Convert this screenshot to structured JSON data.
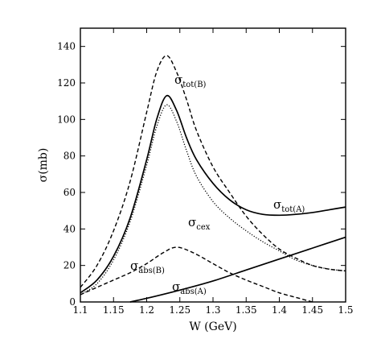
{
  "chart_data": {
    "type": "line",
    "xlabel": "W (GeV)",
    "ylabel": "σ(mb)",
    "xlim": [
      1.1,
      1.5
    ],
    "ylim": [
      0,
      150
    ],
    "x_ticks": [
      "1.1",
      "1.15",
      "1.2",
      "1.25",
      "1.3",
      "1.35",
      "1.4",
      "1.45",
      "1.5"
    ],
    "y_ticks": [
      "0",
      "20",
      "40",
      "60",
      "80",
      "100",
      "120",
      "140"
    ],
    "grid": false,
    "legend": "none",
    "series": [
      {
        "name": "σtot(A)",
        "label_main": "σ",
        "label_sub": "tot(A)",
        "style": "solid",
        "points": [
          [
            1.1,
            5
          ],
          [
            1.125,
            12
          ],
          [
            1.15,
            25
          ],
          [
            1.175,
            46
          ],
          [
            1.2,
            78
          ],
          [
            1.215,
            100
          ],
          [
            1.23,
            113
          ],
          [
            1.245,
            105
          ],
          [
            1.26,
            90
          ],
          [
            1.275,
            78
          ],
          [
            1.3,
            65
          ],
          [
            1.325,
            56
          ],
          [
            1.35,
            50.5
          ],
          [
            1.375,
            48
          ],
          [
            1.4,
            47.5
          ],
          [
            1.425,
            48
          ],
          [
            1.45,
            49
          ],
          [
            1.475,
            50.5
          ],
          [
            1.5,
            52
          ]
        ]
      },
      {
        "name": "σtot(B)",
        "label_main": "σ",
        "label_sub": "tot(B)",
        "style": "dashed",
        "points": [
          [
            1.1,
            8
          ],
          [
            1.125,
            20
          ],
          [
            1.15,
            39
          ],
          [
            1.175,
            66
          ],
          [
            1.2,
            104
          ],
          [
            1.215,
            126
          ],
          [
            1.23,
            135
          ],
          [
            1.245,
            126
          ],
          [
            1.26,
            111
          ],
          [
            1.275,
            94
          ],
          [
            1.3,
            74
          ],
          [
            1.325,
            60
          ],
          [
            1.35,
            47
          ],
          [
            1.375,
            37
          ],
          [
            1.4,
            29
          ],
          [
            1.425,
            24
          ],
          [
            1.45,
            20
          ],
          [
            1.475,
            18
          ],
          [
            1.5,
            17
          ]
        ]
      },
      {
        "name": "σcex",
        "label_main": "σ",
        "label_sub": "cex",
        "style": "dotted",
        "points": [
          [
            1.1,
            4
          ],
          [
            1.125,
            10
          ],
          [
            1.15,
            23
          ],
          [
            1.175,
            44
          ],
          [
            1.2,
            75
          ],
          [
            1.215,
            96
          ],
          [
            1.23,
            108
          ],
          [
            1.245,
            99
          ],
          [
            1.26,
            83
          ],
          [
            1.275,
            69
          ],
          [
            1.3,
            55
          ],
          [
            1.325,
            46
          ],
          [
            1.35,
            39
          ],
          [
            1.375,
            33
          ],
          [
            1.4,
            28
          ],
          [
            1.425,
            23
          ],
          [
            1.45,
            20
          ],
          [
            1.475,
            18
          ],
          [
            1.5,
            17
          ]
        ]
      },
      {
        "name": "σabs(B)",
        "label_main": "σ",
        "label_sub": "abs(B)",
        "style": "dashed",
        "points": [
          [
            1.1,
            4
          ],
          [
            1.125,
            8
          ],
          [
            1.15,
            12
          ],
          [
            1.175,
            16
          ],
          [
            1.2,
            21
          ],
          [
            1.225,
            27
          ],
          [
            1.245,
            30
          ],
          [
            1.27,
            27
          ],
          [
            1.3,
            21
          ],
          [
            1.325,
            16
          ],
          [
            1.35,
            12
          ],
          [
            1.375,
            8.5
          ],
          [
            1.4,
            5
          ],
          [
            1.425,
            2.5
          ],
          [
            1.45,
            0
          ]
        ]
      },
      {
        "name": "σabs(A)",
        "label_main": "σ",
        "label_sub": "abs(A)",
        "style": "solid",
        "points": [
          [
            1.175,
            0
          ],
          [
            1.2,
            2
          ],
          [
            1.25,
            6.5
          ],
          [
            1.3,
            11.5
          ],
          [
            1.35,
            17.5
          ],
          [
            1.4,
            23.5
          ],
          [
            1.45,
            29.5
          ],
          [
            1.5,
            35.5
          ]
        ]
      }
    ]
  }
}
